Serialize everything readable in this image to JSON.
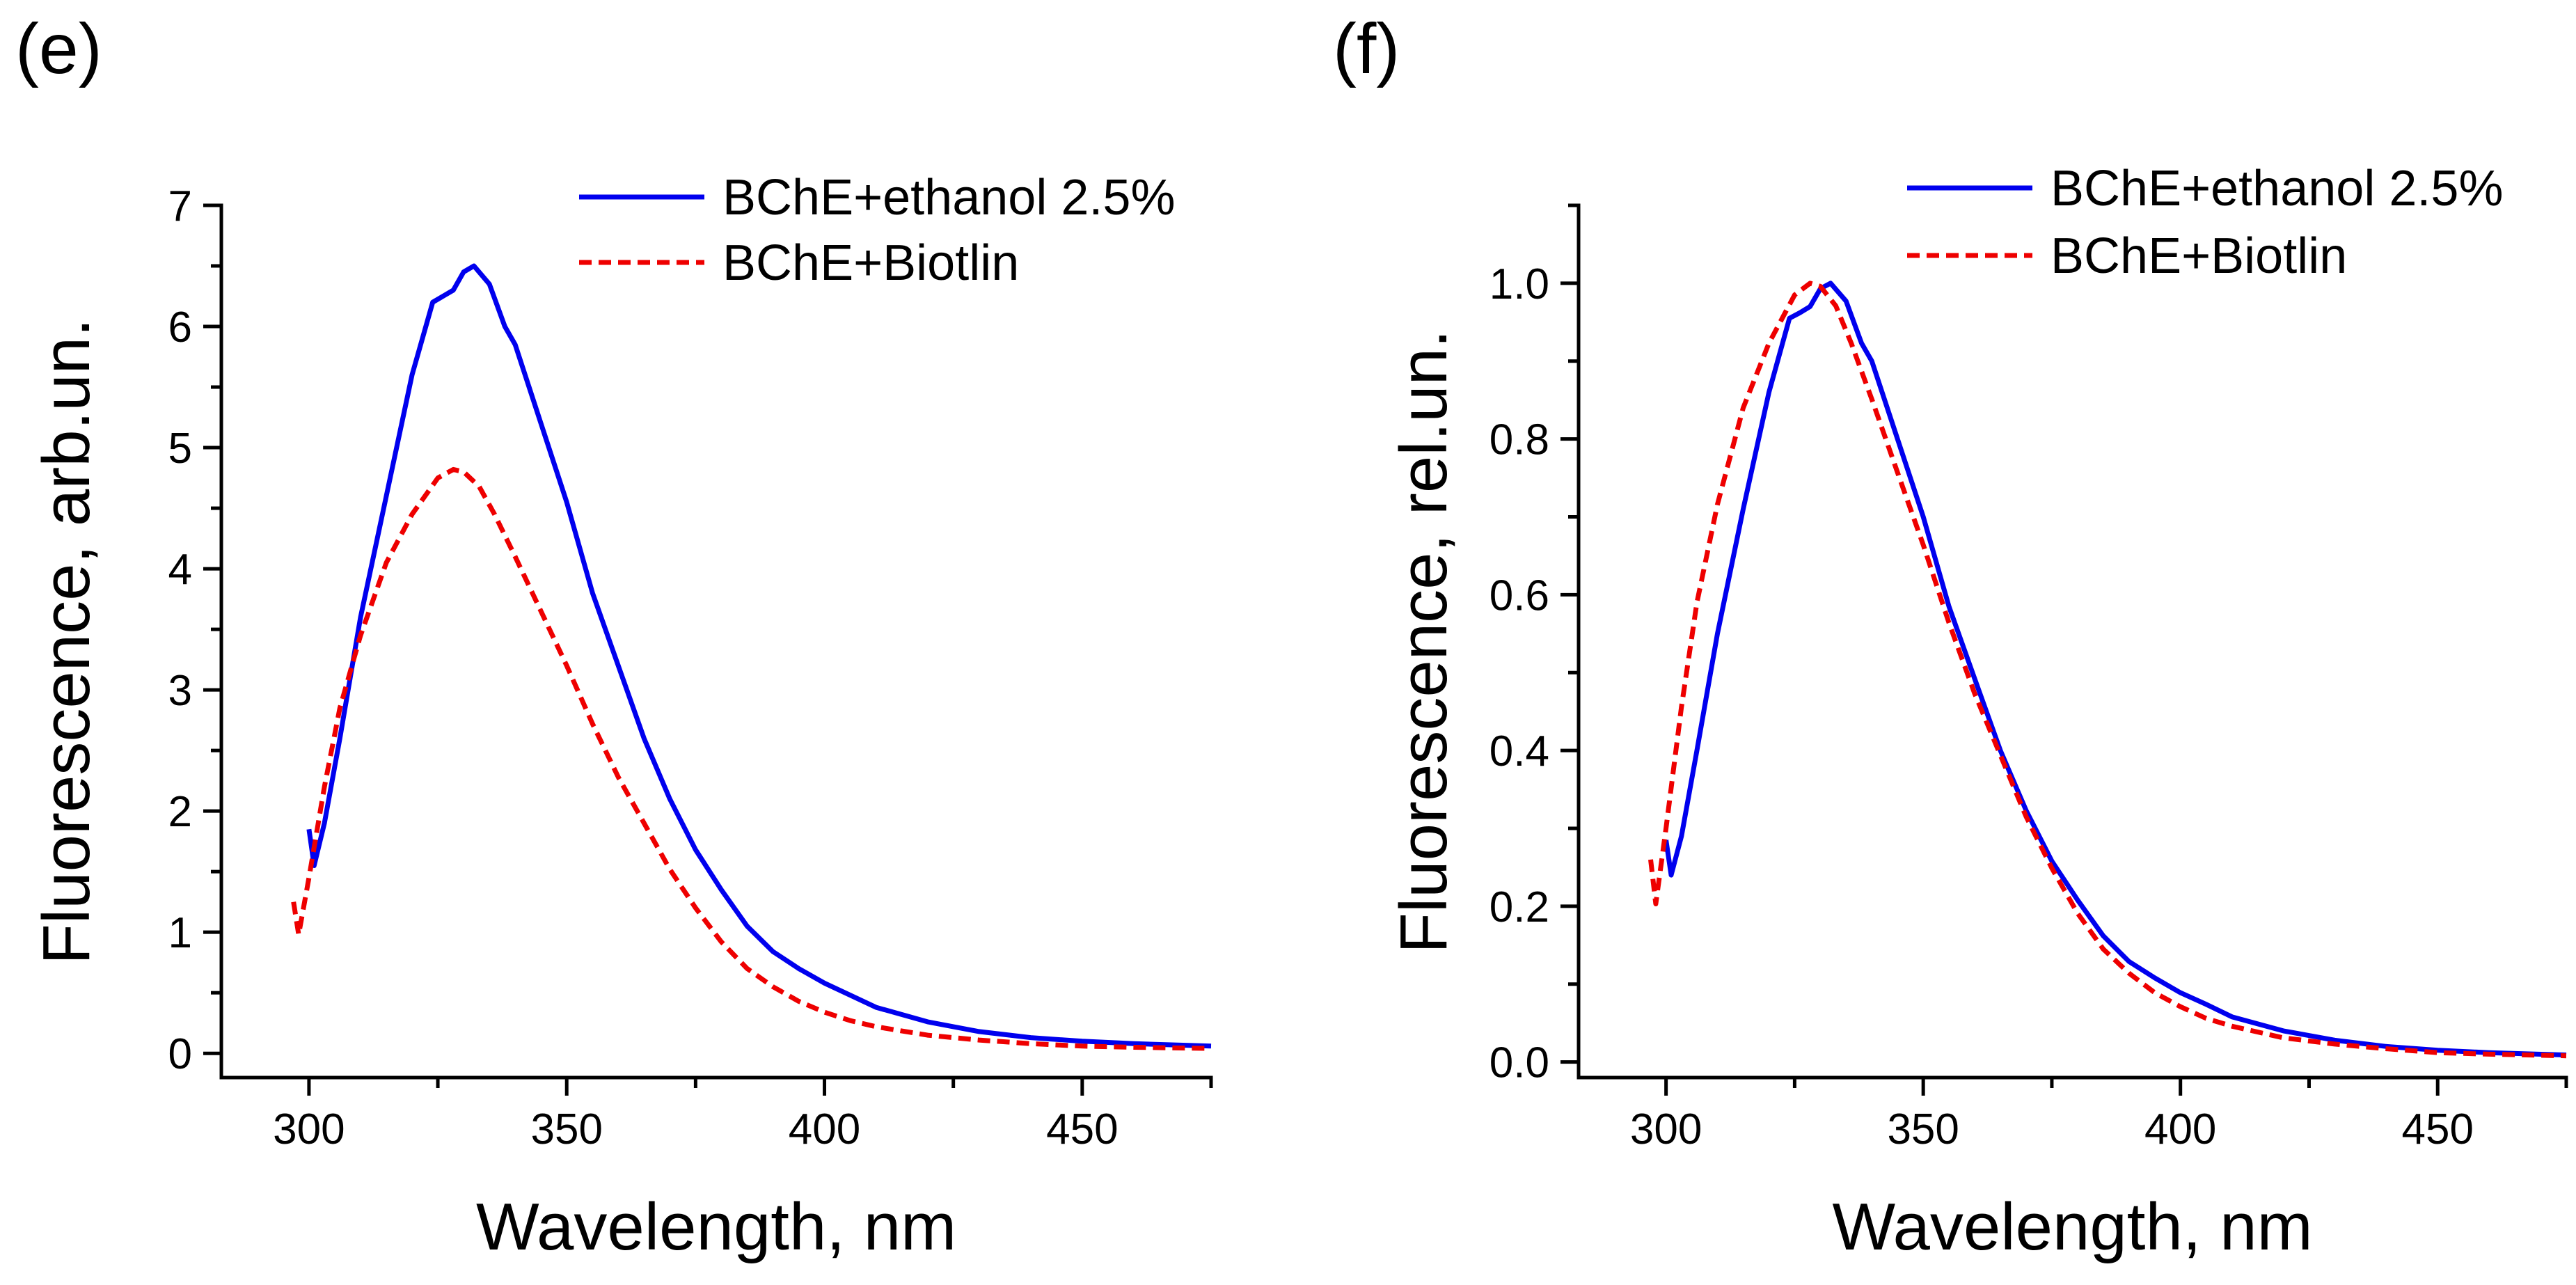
{
  "chart_data": [
    {
      "panel_label": "(e)",
      "type": "line",
      "xlabel": "Wavelength, nm",
      "ylabel": "Fluorescence, arb.un.",
      "xlim": [
        283,
        475
      ],
      "ylim": [
        -0.2,
        7.0
      ],
      "x_ticks": [
        300,
        350,
        400,
        450
      ],
      "y_ticks": [
        0,
        1,
        2,
        3,
        4,
        5,
        6,
        7
      ],
      "x_tick_labels": [
        "300",
        "350",
        "400",
        "450"
      ],
      "y_tick_labels": [
        "0",
        "1",
        "2",
        "3",
        "4",
        "5",
        "6",
        "7"
      ],
      "grid": false,
      "legend_position": "top-right",
      "series": [
        {
          "name": "BChE+ethanol 2.5%",
          "color": "#0000ee",
          "style": "solid",
          "x": [
            300,
            301,
            303,
            306,
            310,
            315,
            320,
            324,
            326,
            328,
            330,
            332,
            335,
            338,
            340,
            345,
            350,
            355,
            360,
            365,
            370,
            375,
            380,
            385,
            390,
            395,
            400,
            405,
            410,
            420,
            430,
            440,
            450,
            460,
            475
          ],
          "y": [
            1.85,
            1.55,
            1.9,
            2.6,
            3.6,
            4.6,
            5.6,
            6.2,
            6.25,
            6.3,
            6.45,
            6.5,
            6.35,
            6.0,
            5.85,
            5.2,
            4.55,
            3.8,
            3.2,
            2.6,
            2.1,
            1.68,
            1.35,
            1.05,
            0.84,
            0.7,
            0.58,
            0.48,
            0.38,
            0.26,
            0.18,
            0.13,
            0.1,
            0.08,
            0.06
          ]
        },
        {
          "name": "BChE+Biotlin",
          "color": "#ee0000",
          "style": "dashed",
          "x": [
            297,
            298,
            300,
            303,
            306,
            310,
            315,
            320,
            325,
            328,
            330,
            333,
            336,
            340,
            345,
            350,
            355,
            360,
            365,
            370,
            375,
            380,
            385,
            390,
            395,
            400,
            405,
            410,
            420,
            430,
            440,
            450,
            460,
            475
          ],
          "y": [
            1.25,
            0.98,
            1.45,
            2.2,
            2.85,
            3.45,
            4.05,
            4.45,
            4.75,
            4.82,
            4.8,
            4.68,
            4.45,
            4.1,
            3.65,
            3.2,
            2.72,
            2.28,
            1.9,
            1.52,
            1.2,
            0.92,
            0.7,
            0.55,
            0.43,
            0.34,
            0.27,
            0.22,
            0.15,
            0.11,
            0.08,
            0.06,
            0.05,
            0.04
          ]
        }
      ]
    },
    {
      "panel_label": "(f)",
      "type": "line",
      "xlabel": "Wavelength, nm",
      "ylabel": "Fluorescence, rel.un.",
      "xlim": [
        283,
        475
      ],
      "ylim": [
        -0.02,
        1.1
      ],
      "x_ticks": [
        300,
        350,
        400,
        450
      ],
      "y_ticks": [
        0.0,
        0.2,
        0.4,
        0.6,
        0.8,
        1.0
      ],
      "x_tick_labels": [
        "300",
        "350",
        "400",
        "450"
      ],
      "y_tick_labels": [
        "0.0",
        "0.2",
        "0.4",
        "0.6",
        "0.8",
        "1.0"
      ],
      "grid": false,
      "legend_position": "top-right",
      "series": [
        {
          "name": "BChE+ethanol 2.5%",
          "color": "#0000ee",
          "style": "solid",
          "x": [
            300,
            301,
            303,
            306,
            310,
            315,
            320,
            324,
            326,
            328,
            330,
            332,
            335,
            338,
            340,
            345,
            350,
            355,
            360,
            365,
            370,
            375,
            380,
            385,
            390,
            395,
            400,
            405,
            410,
            420,
            430,
            440,
            450,
            460,
            475
          ],
          "y": [
            0.285,
            0.24,
            0.29,
            0.4,
            0.55,
            0.71,
            0.86,
            0.955,
            0.962,
            0.97,
            0.993,
            1.0,
            0.977,
            0.923,
            0.9,
            0.8,
            0.7,
            0.585,
            0.492,
            0.4,
            0.323,
            0.258,
            0.208,
            0.162,
            0.129,
            0.108,
            0.089,
            0.074,
            0.058,
            0.04,
            0.028,
            0.02,
            0.015,
            0.012,
            0.009
          ]
        },
        {
          "name": "BChE+Biotlin",
          "color": "#ee0000",
          "style": "dashed",
          "x": [
            297,
            298,
            300,
            303,
            306,
            310,
            315,
            320,
            325,
            328,
            330,
            333,
            336,
            340,
            345,
            350,
            355,
            360,
            365,
            370,
            375,
            380,
            385,
            390,
            395,
            400,
            405,
            410,
            420,
            430,
            440,
            450,
            460,
            475
          ],
          "y": [
            0.26,
            0.203,
            0.3,
            0.456,
            0.59,
            0.716,
            0.84,
            0.923,
            0.985,
            1.0,
            0.996,
            0.971,
            0.923,
            0.851,
            0.757,
            0.664,
            0.564,
            0.473,
            0.394,
            0.315,
            0.249,
            0.191,
            0.145,
            0.114,
            0.089,
            0.071,
            0.056,
            0.046,
            0.031,
            0.023,
            0.017,
            0.012,
            0.01,
            0.008
          ]
        }
      ]
    }
  ]
}
